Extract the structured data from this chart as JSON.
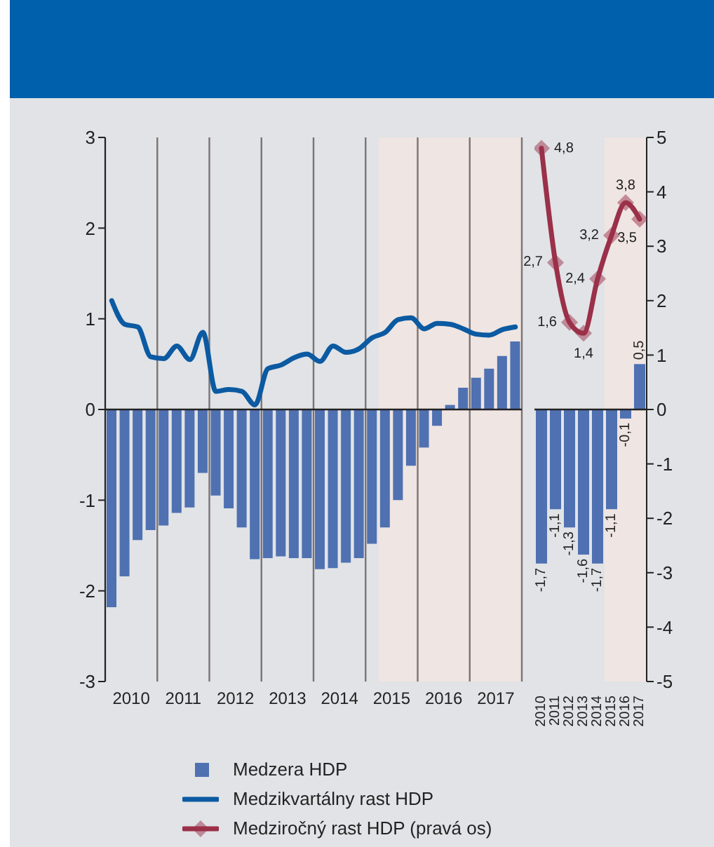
{
  "chart_data": [
    {
      "type": "bar",
      "x": [
        2010.125,
        2010.375,
        2010.625,
        2010.875,
        2011.125,
        2011.375,
        2011.625,
        2011.875,
        2012.125,
        2012.375,
        2012.625,
        2012.875,
        2013.125,
        2013.375,
        2013.625,
        2013.875,
        2014.125,
        2014.375,
        2014.625,
        2014.875,
        2015.125,
        2015.375,
        2015.625,
        2015.875,
        2016.125,
        2016.375,
        2016.625,
        2016.875,
        2017.125,
        2017.375,
        2017.625,
        2017.875
      ],
      "xlim": [
        2010,
        2018
      ],
      "xticks": [
        {
          "value": 2010,
          "label": null
        },
        {
          "value": 2010.5,
          "label": "2010"
        },
        {
          "value": 2011,
          "label": null
        },
        {
          "value": 2011.5,
          "label": "2011"
        },
        {
          "value": 2012,
          "label": null
        },
        {
          "value": 2012.5,
          "label": "2012"
        },
        {
          "value": 2013,
          "label": null
        },
        {
          "value": 2013.5,
          "label": "2013"
        },
        {
          "value": 2014,
          "label": null
        },
        {
          "value": 2014.5,
          "label": "2014"
        },
        {
          "value": 2015,
          "label": null
        },
        {
          "value": 2015.5,
          "label": "2015"
        },
        {
          "value": 2016,
          "label": null
        },
        {
          "value": 2016.5,
          "label": "2016"
        },
        {
          "value": 2017,
          "label": null
        },
        {
          "value": 2017.5,
          "label": "2017"
        },
        {
          "value": 2018,
          "label": null
        }
      ],
      "ylim": [
        -3,
        3
      ],
      "yticks": [
        -3,
        -2,
        -1,
        0,
        1,
        2,
        3
      ],
      "grid": "x",
      "legend": "bottom",
      "bands": [
        {
          "axis": "x",
          "from": 2015.25,
          "to": 2018,
          "color": "#efe5e2"
        }
      ],
      "ref_lines": [
        {
          "axis": "y",
          "value": 0,
          "color": "#222222"
        }
      ],
      "series": [
        {
          "name": "Medzera HDP",
          "color": "#4f71b2",
          "values": [
            -2.18,
            -1.84,
            -1.44,
            -1.33,
            -1.28,
            -1.14,
            -1.08,
            -0.7,
            -0.95,
            -1.09,
            -1.3,
            -1.65,
            -1.64,
            -1.62,
            -1.64,
            -1.64,
            -1.76,
            -1.75,
            -1.69,
            -1.64,
            -1.48,
            -1.3,
            -1.0,
            -0.62,
            -0.42,
            -0.18,
            0.05,
            0.24,
            0.35,
            0.45,
            0.59,
            0.75
          ]
        },
        {
          "name": "Medzikvartálny rast HDP",
          "type": "line",
          "color": "#0b5aa2",
          "values": [
            1.2,
            0.94,
            0.91,
            0.58,
            0.56,
            0.7,
            0.55,
            0.85,
            0.2,
            0.22,
            0.2,
            0.05,
            0.45,
            0.49,
            0.57,
            0.61,
            0.53,
            0.7,
            0.63,
            0.67,
            0.79,
            0.85,
            0.99,
            1.01,
            0.89,
            0.95,
            0.94,
            0.89,
            0.83,
            0.82,
            0.88,
            0.91
          ]
        }
      ]
    },
    {
      "type": "bar",
      "categories": [
        "2010",
        "2011",
        "2012",
        "2013",
        "2014",
        "2015",
        "2016",
        "2017"
      ],
      "ylim": [
        -3,
        3
      ],
      "y2lim": [
        -5,
        5
      ],
      "y2ticks": [
        -5,
        -4,
        -3,
        -2,
        -1,
        0,
        1,
        2,
        3,
        4,
        5
      ],
      "tick_labels": [
        "x",
        "y2"
      ],
      "legend": "bottom",
      "bands": [
        {
          "axis": "x",
          "from": "2015",
          "to": "2017",
          "color": "#efe5e2"
        }
      ],
      "ref_lines": [
        {
          "axis": "y",
          "value": 0,
          "color": "#222222"
        }
      ],
      "series": [
        {
          "color": "#4f71b2",
          "values": [
            -1.7,
            -1.1,
            -1.3,
            -1.6,
            -1.7,
            -1.1,
            -0.1,
            0.5
          ],
          "value_labels": [
            "-1,7",
            "-1,1",
            "-1,3",
            "-1,6",
            "-1,7",
            "-1,1",
            "-0,1",
            "0,5"
          ]
        },
        {
          "name": "Medziročný rast HDP (pravá os)",
          "type": "line",
          "axis": "y2",
          "marker": "diamond",
          "color": "#9b3049",
          "values": [
            4.8,
            2.7,
            1.6,
            1.4,
            2.4,
            3.2,
            3.8,
            3.5
          ],
          "value_labels": [
            "4,8",
            "2,7",
            "1,6",
            "1,4",
            "2,4",
            "3,2",
            "3,8",
            "3,5"
          ]
        }
      ]
    }
  ]
}
